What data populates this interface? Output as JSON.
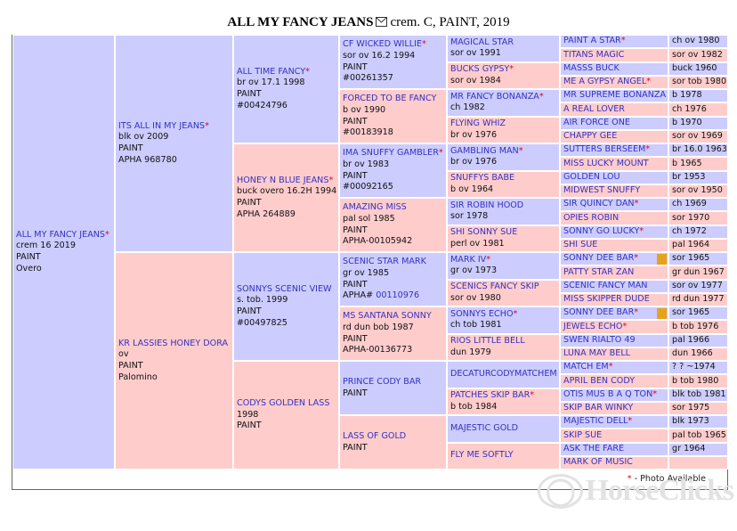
{
  "header": {
    "title": "ALL MY FANCY JEANS",
    "subtitle": "crem. C, PAINT, 2019"
  },
  "generations": [
    [
      {
        "name": "ALL MY FANCY JEANS",
        "mark": "*",
        "lines": [
          "crem 16 2019",
          "PAINT",
          "Overo"
        ]
      }
    ],
    [
      {
        "name": "ITS ALL IN MY JEANS",
        "mark": "*",
        "lines": [
          "blk ov 2009",
          "PAINT",
          "APHA 968780"
        ]
      },
      {
        "name": "KR LASSIES HONEY DORA",
        "lines": [
          "ov",
          "PAINT",
          "Palomino"
        ]
      }
    ],
    [
      {
        "name": "ALL TIME FANCY",
        "mark": "*",
        "lines": [
          "br ov 17.1 1998",
          "PAINT",
          "#00424796"
        ]
      },
      {
        "name": "HONEY N BLUE JEANS",
        "mark": "*",
        "lines": [
          "buck overo 16.2H 1994",
          "PAINT",
          "APHA 264889"
        ]
      },
      {
        "name": "SONNYS SCENIC VIEW",
        "lines": [
          "s. tob. 1999",
          "PAINT",
          "#00497825"
        ]
      },
      {
        "name": "CODYS GOLDEN LASS",
        "lines": [
          "1998",
          "PAINT"
        ]
      }
    ],
    [
      {
        "name": "CF WICKED WILLIE",
        "mark": "*",
        "lines": [
          "sor ov 16.2 1994",
          "PAINT",
          "#00261357"
        ]
      },
      {
        "name": "FORCED TO BE FANCY",
        "lines": [
          "b ov 1990",
          "PAINT",
          "#00183918"
        ]
      },
      {
        "name": "IMA SNUFFY GAMBLER",
        "mark": "*",
        "lines": [
          "br ov 1983",
          "PAINT",
          "#00092165"
        ]
      },
      {
        "name": "AMAZING MISS",
        "lines": [
          "pal sol 1985",
          "PAINT",
          "APHA-00105942"
        ]
      },
      {
        "name": "SCENIC STAR MARK",
        "lines": [
          "gr ov 1985",
          "PAINT",
          {
            "text": "APHA#",
            "link": "00110976"
          }
        ]
      },
      {
        "name": "MS SANTANA SONNY",
        "lines": [
          "rd dun bob 1987",
          "PAINT",
          "APHA-00136773"
        ]
      },
      {
        "name": "PRINCE CODY BAR",
        "lines": [
          "PAINT"
        ]
      },
      {
        "name": "LASS OF GOLD",
        "lines": [
          "PAINT"
        ]
      }
    ],
    [
      {
        "name": "MAGICAL STAR",
        "lines": [
          "sor ov 1991"
        ]
      },
      {
        "name": "BUCKS GYPSY",
        "mark": "*",
        "lines": [
          "sor ov 1984"
        ]
      },
      {
        "name": "MR FANCY BONANZA",
        "mark": "*",
        "lines": [
          "ch 1982"
        ]
      },
      {
        "name": "FLYING WHIZ",
        "lines": [
          "br ov 1976"
        ]
      },
      {
        "name": "GAMBLING MAN",
        "mark": "*",
        "lines": [
          "br ov 1976"
        ]
      },
      {
        "name": "SNUFFYS BABE",
        "lines": [
          "b ov 1964"
        ]
      },
      {
        "name": "SIR ROBIN HOOD",
        "lines": [
          "sor 1978"
        ]
      },
      {
        "name": "SHI SONNY SUE",
        "lines": [
          "perl ov 1981"
        ]
      },
      {
        "name": "MARK IV",
        "mark": "*",
        "lines": [
          "gr ov 1973"
        ]
      },
      {
        "name": "SCENICS FANCY SKIP",
        "lines": [
          "sor ov 1980"
        ]
      },
      {
        "name": "SONNYS ECHO",
        "mark": "*",
        "lines": [
          "ch tob 1981"
        ]
      },
      {
        "name": "RIOS LITTLE BELL",
        "lines": [
          "dun 1979"
        ]
      },
      {
        "name": "DECATURCODYMATCHEM",
        "lines": []
      },
      {
        "name": "PATCHES SKIP BAR",
        "mark": "*",
        "lines": [
          "b tob 1984"
        ]
      },
      {
        "name": "MAJESTIC GOLD",
        "lines": []
      },
      {
        "name": "FLY ME SOFTLY",
        "lines": []
      }
    ],
    [
      {
        "name": "PAINT A STAR",
        "mark": "*",
        "details": "ch ov 1980"
      },
      {
        "name": "TITANS MAGIC",
        "details": "sor ov 1982"
      },
      {
        "name": "MASSS BUCK",
        "details": "buck 1960"
      },
      {
        "name": "ME A GYPSY ANGEL",
        "mark": "*",
        "details": "sor tob 1980"
      },
      {
        "name": "MR SUPREME BONANZA",
        "details": "b 1978"
      },
      {
        "name": "A REAL LOVER",
        "details": "ch 1976"
      },
      {
        "name": "AIR FORCE ONE",
        "details": "b 1970"
      },
      {
        "name": "CHAPPY GEE",
        "details": "sor ov 1969"
      },
      {
        "name": "SUTTERS BERSEEM",
        "mark": "*",
        "details": "br 16.0 1963"
      },
      {
        "name": "MISS LUCKY MOUNT",
        "details": "b 1965"
      },
      {
        "name": "GOLDEN LOU",
        "details": "br 1953"
      },
      {
        "name": "MIDWEST SNUFFY",
        "details": "sor ov 1950"
      },
      {
        "name": "SIR QUINCY DAN",
        "mark": "*",
        "details": "ch 1969"
      },
      {
        "name": "OPIES ROBIN",
        "details": "sor 1970"
      },
      {
        "name": "SONNY GO LUCKY",
        "mark": "*",
        "details": "ch 1972"
      },
      {
        "name": "SHI SUE",
        "details": "pal 1964"
      },
      {
        "name": "SONNY DEE BAR",
        "mark": "*",
        "details": "sor 1965",
        "icon": true
      },
      {
        "name": "PATTY STAR ZAN",
        "details": "gr dun 1967"
      },
      {
        "name": "SCENIC FANCY MAN",
        "details": "sor ov 1977"
      },
      {
        "name": "MISS SKIPPER DUDE",
        "details": "rd dun 1977"
      },
      {
        "name": "SONNY DEE BAR",
        "mark": "*",
        "details": "sor 1965",
        "icon": true
      },
      {
        "name": "JEWELS ECHO",
        "mark": "*",
        "details": "b tob 1976"
      },
      {
        "name": "SWEN RIALTO 49",
        "details": "pal 1966"
      },
      {
        "name": "LUNA MAY BELL",
        "details": "dun 1966"
      },
      {
        "name": "MATCH EM",
        "mark": "*",
        "details": "? ? ~1974"
      },
      {
        "name": "APRIL BEN CODY",
        "details": "b tob 1980"
      },
      {
        "name": "OTIS MUS B A Q TON",
        "mark": "*",
        "details": "blk tob 1981"
      },
      {
        "name": "SKIP BAR WINKY",
        "details": "sor 1975"
      },
      {
        "name": "MAJESTIC DELL",
        "mark": "*",
        "details": "blk 1973"
      },
      {
        "name": "SKIP SUE",
        "details": "pal tob 1965"
      },
      {
        "name": "ASK THE FARE",
        "details": "gr 1964"
      },
      {
        "name": "MARK OF MUSIC"
      }
    ]
  ],
  "footer": {
    "mark": "*",
    "text": "- Photo Available"
  },
  "watermark": "HorseClicks"
}
